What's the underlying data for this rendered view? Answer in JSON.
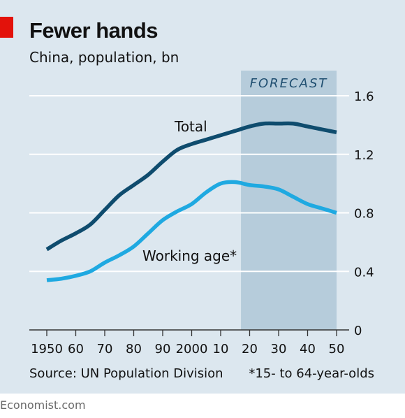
{
  "title": "Fewer hands",
  "subtitle": "China, population, bn",
  "source": "Source: UN Population Division",
  "footnote": "*15- to 64-year-olds",
  "brand": "Economist.com",
  "colors": {
    "background": "#dce7ef",
    "forecast_band": "#b6ccdb",
    "total": "#0f4c6e",
    "working_age": "#1fa9e1",
    "accent": "#e3120b",
    "gridline": "#ffffff"
  },
  "chart_data": {
    "type": "line",
    "title": "Fewer hands",
    "subtitle": "China, population, bn",
    "x_tick_labels": [
      "1950",
      "60",
      "70",
      "80",
      "90",
      "2000",
      "10",
      "20",
      "30",
      "40",
      "50"
    ],
    "x_tick_values": [
      1950,
      1960,
      1970,
      1980,
      1990,
      2000,
      2010,
      2020,
      2030,
      2040,
      2050
    ],
    "y_tick_labels": [
      "0",
      "0.4",
      "0.8",
      "1.2",
      "1.6"
    ],
    "y_tick_values": [
      0,
      0.4,
      0.8,
      1.2,
      1.6
    ],
    "xlim": [
      1950,
      2050
    ],
    "ylim": [
      0,
      1.6
    ],
    "grid": true,
    "y_axis_side": "right",
    "forecast": {
      "label": "FORECAST",
      "start": 2017,
      "end": 2050
    },
    "series": [
      {
        "name": "Total",
        "color": "#0f4c6e",
        "x": [
          1950,
          1955,
          1960,
          1965,
          1970,
          1975,
          1980,
          1985,
          1990,
          1995,
          2000,
          2005,
          2010,
          2015,
          2020,
          2025,
          2030,
          2035,
          2040,
          2045,
          2050
        ],
        "y": [
          0.55,
          0.61,
          0.66,
          0.72,
          0.82,
          0.92,
          0.99,
          1.06,
          1.15,
          1.23,
          1.27,
          1.3,
          1.33,
          1.36,
          1.39,
          1.41,
          1.41,
          1.41,
          1.39,
          1.37,
          1.35
        ]
      },
      {
        "name": "Working age*",
        "color": "#1fa9e1",
        "x": [
          1950,
          1955,
          1960,
          1965,
          1970,
          1975,
          1980,
          1985,
          1990,
          1995,
          2000,
          2005,
          2010,
          2015,
          2020,
          2025,
          2030,
          2035,
          2040,
          2045,
          2050
        ],
        "y": [
          0.34,
          0.35,
          0.37,
          0.4,
          0.46,
          0.51,
          0.57,
          0.66,
          0.75,
          0.81,
          0.86,
          0.94,
          1.0,
          1.01,
          0.99,
          0.98,
          0.96,
          0.91,
          0.86,
          0.83,
          0.8
        ]
      }
    ]
  }
}
